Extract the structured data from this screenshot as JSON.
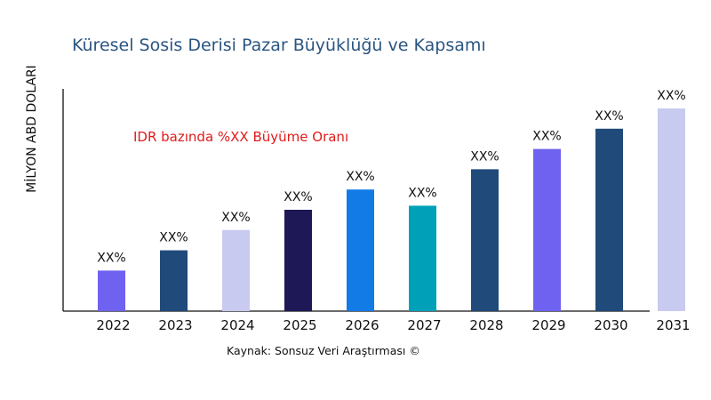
{
  "chart_data": {
    "type": "bar",
    "title": "Küresel Sosis Derisi Pazar Büyüklüğü ve Kapsamı",
    "ylabel": "MİLYON ABD DOLARI",
    "xlabel": "",
    "categories": [
      "2022",
      "2023",
      "2024",
      "2025",
      "2026",
      "2027",
      "2028",
      "2029",
      "2030",
      "2031"
    ],
    "values": [
      20,
      30,
      40,
      50,
      60,
      52,
      70,
      80,
      90,
      100
    ],
    "data_labels": [
      "XX%",
      "XX%",
      "XX%",
      "XX%",
      "XX%",
      "XX%",
      "XX%",
      "XX%",
      "XX%",
      "XX%"
    ],
    "colors": [
      "#6f62f0",
      "#1f4a7a",
      "#c8caf0",
      "#1e1856",
      "#127be6",
      "#00a1b8",
      "#1f4a7a",
      "#6f62f0",
      "#1f4a7a",
      "#c8caf0"
    ],
    "ylim": [
      0,
      100
    ],
    "grid": false,
    "y_tick_labels": false,
    "annotation": "IDR bazında %XX Büyüme Oranı",
    "source": "Kaynak: Sonsuz Veri Araştırması ©"
  }
}
